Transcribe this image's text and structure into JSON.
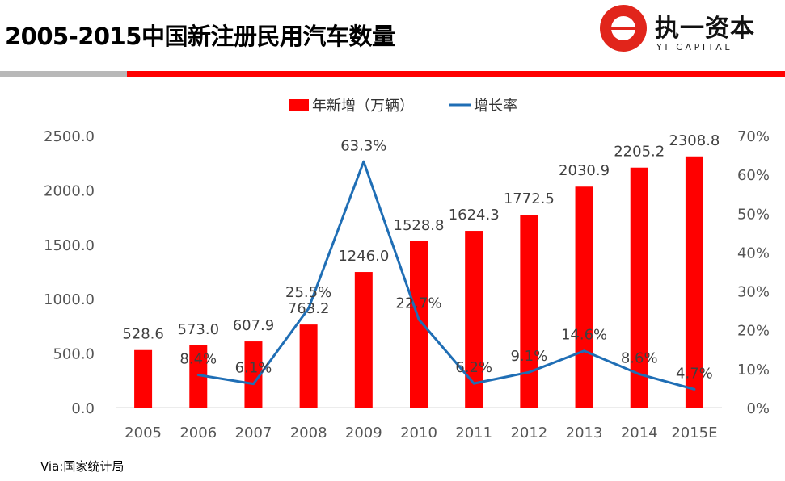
{
  "header": {
    "title": "2005-2015中国新注册民用汽车数量"
  },
  "logo": {
    "name": "执一资本",
    "subtitle": "YI CAPITAL"
  },
  "source": "Via:国家统计局",
  "chart_data": {
    "type": "bar+line",
    "categories": [
      "2005",
      "2006",
      "2007",
      "2008",
      "2009",
      "2010",
      "2011",
      "2012",
      "2013",
      "2014",
      "2015E"
    ],
    "series": [
      {
        "name": "年新增（万辆）",
        "type": "bar",
        "axis": "left",
        "color": "#ff0000",
        "values": [
          528.6,
          573.0,
          607.9,
          763.2,
          1246.0,
          1528.8,
          1624.3,
          1772.5,
          2030.9,
          2205.2,
          2308.8
        ],
        "labels": [
          "528.6",
          "573.0",
          "607.9",
          "763.2",
          "1246.0",
          "1528.8",
          "1624.3",
          "1772.5",
          "2030.9",
          "2205.2",
          "2308.8"
        ]
      },
      {
        "name": "增长率",
        "type": "line",
        "axis": "right",
        "color": "#1f6eb5",
        "values": [
          null,
          8.4,
          6.1,
          25.5,
          63.3,
          22.7,
          6.2,
          9.1,
          14.6,
          8.6,
          4.7
        ],
        "labels": [
          "",
          "8.4%",
          "6.1%",
          "25.5%",
          "63.3%",
          "22.7%",
          "6.2%",
          "9.1%",
          "14.6%",
          "8.6%",
          "4.7%"
        ]
      }
    ],
    "left_axis": {
      "min": 0,
      "max": 2500,
      "ticks": [
        0,
        500,
        1000,
        1500,
        2000,
        2500
      ],
      "tick_labels": [
        "0.0",
        "500.0",
        "1000.0",
        "1500.0",
        "2000.0",
        "2500.0"
      ]
    },
    "right_axis": {
      "min": 0,
      "max": 70,
      "ticks": [
        0,
        10,
        20,
        30,
        40,
        50,
        60,
        70
      ],
      "tick_labels": [
        "0%",
        "10%",
        "20%",
        "30%",
        "40%",
        "50%",
        "60%",
        "70%"
      ]
    },
    "legend": {
      "position": "top-center",
      "entries": [
        "年新增（万辆）",
        "增长率"
      ]
    }
  }
}
